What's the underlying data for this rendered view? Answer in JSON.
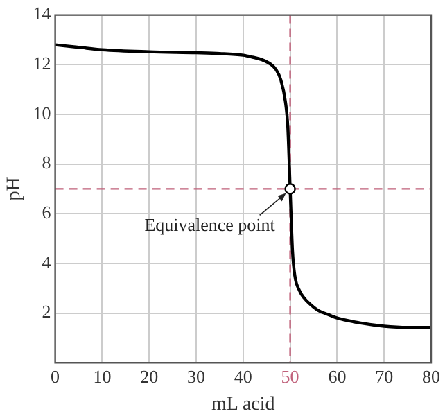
{
  "chart_data": {
    "type": "line",
    "xlabel": "mL acid",
    "ylabel": "pH",
    "xlim": [
      0,
      80
    ],
    "ylim": [
      0,
      14
    ],
    "xticks": [
      0,
      10,
      20,
      30,
      40,
      50,
      60,
      70,
      80
    ],
    "yticks": [
      {
        "value": 0,
        "label": null
      },
      2,
      4,
      6,
      8,
      10,
      12,
      14
    ],
    "grid": true,
    "line_style": "solid",
    "marker": "none",
    "series": [
      {
        "color": "#000000",
        "x": [
          0,
          5,
          10,
          20,
          30,
          35,
          40,
          42,
          44,
          46,
          47,
          48,
          49,
          49.5,
          50,
          50.5,
          51,
          52,
          53,
          54,
          56,
          58,
          60,
          65,
          70,
          75,
          80
        ],
        "values": [
          12.8,
          12.7,
          12.6,
          12.52,
          12.48,
          12.45,
          12.38,
          12.3,
          12.2,
          12.0,
          11.8,
          11.4,
          10.5,
          9.5,
          7,
          4.5,
          3.5,
          2.9,
          2.6,
          2.4,
          2.1,
          1.95,
          1.8,
          1.6,
          1.47,
          1.42,
          1.42
        ]
      },
      {
        "type": "scatter",
        "color": "#ffffff",
        "marker": "circle",
        "x": [
          50
        ],
        "values": [
          7
        ]
      }
    ],
    "ref_lines": [
      {
        "axis": "x",
        "value": 50,
        "color": "#c0607a",
        "line_style": "dashed"
      },
      {
        "axis": "y",
        "value": 7,
        "color": "#c0607a",
        "line_style": "dashed"
      }
    ],
    "annotations": [
      {
        "text": "Equivalence point",
        "x": 50,
        "y": 7
      }
    ]
  }
}
